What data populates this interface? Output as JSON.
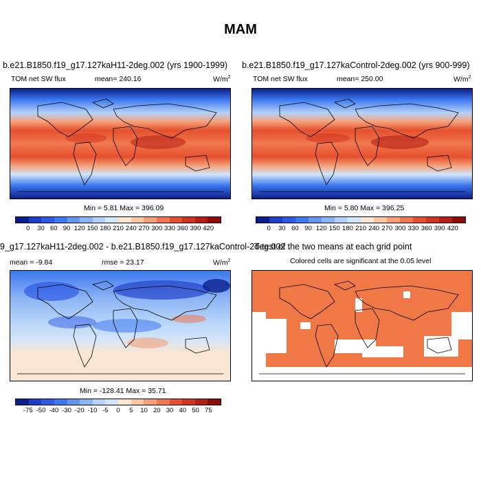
{
  "title": "MAM",
  "panels": {
    "p1": {
      "case": "b.e21.B1850.f19_g17.127kaH11-2deg.002 (yrs 1900-1999)",
      "var": "TOM net SW flux",
      "mean": "mean= 240.16",
      "units": "W/m",
      "units_sup": "2",
      "minmax": "Min =   5.81 Max = 396.09"
    },
    "p2": {
      "case": "b.e21.B1850.f19_g17.127kaControl-2deg.002 (yrs 900-999)",
      "var": "TOM net SW flux",
      "mean": "mean= 250.00",
      "units": "W/m",
      "units_sup": "2",
      "minmax": "Min =   5.80 Max = 396.25"
    },
    "p3": {
      "case": "9_g17.127kaH11-2deg.002 - b.e21.B1850.f19_g17.127kaControl-2deg.002",
      "mean": "mean =  -9.84",
      "rmse": "rmse =  23.17",
      "units": "W/m",
      "units_sup": "2",
      "minmax": "Min = -128.41 Max =  35.71"
    },
    "p4": {
      "case": "T-test of the two means at each grid point",
      "subtitle": "Colored cells are significant at the 0.05 level"
    }
  },
  "colorbar_abs": {
    "ticks": [
      "0",
      "30",
      "60",
      "90",
      "120",
      "150",
      "180",
      "210",
      "240",
      "270",
      "300",
      "330",
      "360",
      "390",
      "420"
    ],
    "colors": [
      "#0a1e8c",
      "#1e3cc8",
      "#2d5ae6",
      "#3c78f0",
      "#6496f0",
      "#8cb4f5",
      "#b4d2fa",
      "#d2e6fa",
      "#fae6d2",
      "#fac8a0",
      "#f5a078",
      "#f07850",
      "#e6502d",
      "#d2321e",
      "#b41e14",
      "#8c0a0a"
    ]
  },
  "colorbar_diff": {
    "ticks": [
      "-75",
      "-50",
      "-40",
      "-30",
      "-20",
      "-10",
      "-5",
      "0",
      "5",
      "10",
      "20",
      "30",
      "40",
      "50",
      "75"
    ],
    "colors": [
      "#0a1e8c",
      "#1e3cc8",
      "#2d5ae6",
      "#3c78f0",
      "#6496f0",
      "#8cb4f5",
      "#b4d2fa",
      "#d2e6fa",
      "#fae6d2",
      "#fac8a0",
      "#f5a078",
      "#f07850",
      "#e6502d",
      "#d2321e",
      "#b41e14",
      "#8c0a0a"
    ]
  },
  "ttest_color": "#f07846"
}
